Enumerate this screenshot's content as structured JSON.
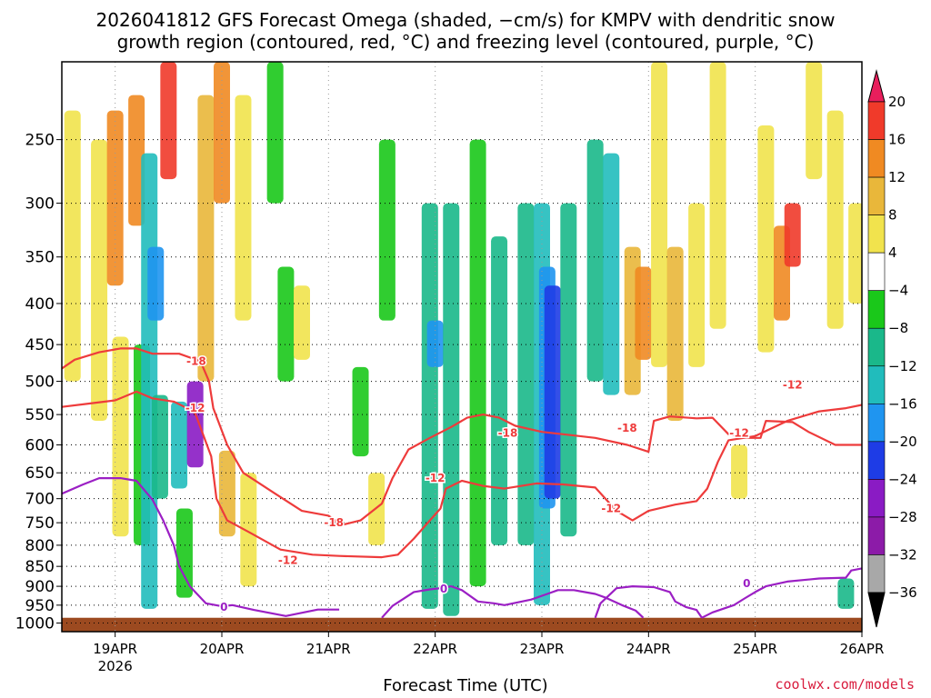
{
  "title_line1": "2026041812 GFS Forecast Omega (shaded, −cm/s) for KMPV with dendritic snow",
  "title_line2": "growth region (contoured, red, °C) and freezing level (contoured, purple, °C)",
  "credit": "coolwx.com/models",
  "chart_data": {
    "type": "heatmap",
    "title": "2026041812 GFS Forecast Omega (shaded, −cm/s) for KMPV with dendritic snow growth region (contoured, red, °C) and freezing level (contoured, purple, °C)",
    "xlabel": "Forecast Time (UTC)",
    "ylabel": "",
    "x_range_days": [
      18.5,
      26.0
    ],
    "x_ticks": [
      {
        "label": "19APR",
        "day": 19,
        "sub": "2026"
      },
      {
        "label": "20APR",
        "day": 20,
        "sub": ""
      },
      {
        "label": "21APR",
        "day": 21,
        "sub": ""
      },
      {
        "label": "22APR",
        "day": 22,
        "sub": ""
      },
      {
        "label": "23APR",
        "day": 23,
        "sub": ""
      },
      {
        "label": "24APR",
        "day": 24,
        "sub": ""
      },
      {
        "label": "25APR",
        "day": 25,
        "sub": ""
      },
      {
        "label": "26APR",
        "day": 26,
        "sub": ""
      }
    ],
    "y_axis": "pressure (hPa), inverted",
    "y_range": [
      1025,
      200
    ],
    "y_ticks": [
      250,
      300,
      350,
      400,
      450,
      500,
      550,
      600,
      650,
      700,
      750,
      800,
      850,
      900,
      950,
      1000
    ],
    "colorbar": {
      "labels": [
        "20",
        "16",
        "12",
        "8",
        "4",
        "−4",
        "−8",
        "−12",
        "−16",
        "−20",
        "−24",
        "−28",
        "−32",
        "−36"
      ],
      "colors": [
        "#e81e5c",
        "#f03a2a",
        "#f08a22",
        "#e9b73a",
        "#f1e34d",
        "#ffffff",
        "#1ac81a",
        "#1ab88a",
        "#21bcbc",
        "#1f95f0",
        "#1e3ce6",
        "#8a1bc4",
        "#8c1ba8",
        "#a8a8a8",
        "#000000"
      ]
    },
    "surface_color": "#9c4a20",
    "contours": [
      {
        "name": "dgz-minus18",
        "color": "#ee3b3b",
        "level": -18,
        "label": "-18",
        "points": [
          [
            18.5,
            482
          ],
          [
            18.62,
            470
          ],
          [
            18.85,
            460
          ],
          [
            19.05,
            455
          ],
          [
            19.2,
            455
          ],
          [
            19.35,
            462
          ],
          [
            19.6,
            462
          ],
          [
            19.8,
            472
          ],
          [
            19.88,
            500
          ],
          [
            19.92,
            540
          ],
          [
            20.05,
            600
          ],
          [
            20.2,
            650
          ],
          [
            20.5,
            690
          ],
          [
            20.75,
            725
          ],
          [
            21.0,
            735
          ],
          [
            21.12,
            755
          ],
          [
            21.3,
            745
          ],
          [
            21.5,
            710
          ],
          [
            21.6,
            660
          ],
          [
            21.75,
            608
          ],
          [
            21.95,
            588
          ],
          [
            22.15,
            570
          ],
          [
            22.3,
            555
          ],
          [
            22.45,
            550
          ],
          [
            22.6,
            555
          ],
          [
            22.75,
            568
          ],
          [
            23.0,
            578
          ],
          [
            23.2,
            582
          ],
          [
            23.5,
            588
          ],
          [
            23.8,
            600
          ],
          [
            24.0,
            612
          ],
          [
            24.05,
            560
          ],
          [
            24.2,
            553
          ],
          [
            24.45,
            556
          ],
          [
            24.6,
            555
          ],
          [
            24.75,
            582
          ],
          [
            24.95,
            588
          ],
          [
            25.05,
            588
          ],
          [
            25.1,
            560
          ],
          [
            25.35,
            562
          ],
          [
            25.5,
            578
          ],
          [
            25.75,
            600
          ],
          [
            26.0,
            600
          ]
        ],
        "labels": [
          {
            "day": 19.76,
            "p": 472
          },
          {
            "day": 21.05,
            "p": 750
          },
          {
            "day": 22.68,
            "p": 580
          },
          {
            "day": 23.8,
            "p": 572
          }
        ]
      },
      {
        "name": "dgz-minus12",
        "color": "#ee3b3b",
        "level": -12,
        "label": "-12",
        "points": [
          [
            18.5,
            538
          ],
          [
            18.75,
            533
          ],
          [
            19.0,
            528
          ],
          [
            19.2,
            515
          ],
          [
            19.35,
            525
          ],
          [
            19.55,
            530
          ],
          [
            19.65,
            538
          ],
          [
            19.75,
            548
          ],
          [
            19.9,
            620
          ],
          [
            19.95,
            700
          ],
          [
            20.05,
            745
          ],
          [
            20.25,
            770
          ],
          [
            20.55,
            810
          ],
          [
            20.85,
            822
          ],
          [
            21.1,
            825
          ],
          [
            21.5,
            828
          ],
          [
            21.65,
            822
          ],
          [
            21.8,
            785
          ],
          [
            21.95,
            745
          ],
          [
            22.05,
            720
          ],
          [
            22.1,
            680
          ],
          [
            22.25,
            665
          ],
          [
            22.45,
            675
          ],
          [
            22.65,
            680
          ],
          [
            22.95,
            670
          ],
          [
            23.2,
            672
          ],
          [
            23.5,
            678
          ],
          [
            23.7,
            725
          ],
          [
            23.85,
            745
          ],
          [
            24.0,
            725
          ],
          [
            24.25,
            712
          ],
          [
            24.45,
            705
          ],
          [
            24.55,
            680
          ],
          [
            24.65,
            630
          ],
          [
            24.75,
            592
          ],
          [
            25.0,
            585
          ],
          [
            25.3,
            560
          ],
          [
            25.6,
            545
          ],
          [
            25.85,
            540
          ],
          [
            26.0,
            535
          ]
        ],
        "labels": [
          {
            "day": 19.75,
            "p": 540
          },
          {
            "day": 20.62,
            "p": 835
          },
          {
            "day": 22.0,
            "p": 660
          },
          {
            "day": 23.65,
            "p": 720
          },
          {
            "day": 24.85,
            "p": 580
          },
          {
            "day": 25.35,
            "p": 505
          }
        ]
      },
      {
        "name": "freezing-0a",
        "color": "#9b1fc4",
        "level": 0,
        "label": "0",
        "points": [
          [
            18.5,
            690
          ],
          [
            18.7,
            672
          ],
          [
            18.85,
            660
          ],
          [
            19.05,
            660
          ],
          [
            19.2,
            665
          ],
          [
            19.35,
            702
          ],
          [
            19.45,
            745
          ],
          [
            19.55,
            800
          ],
          [
            19.6,
            850
          ],
          [
            19.7,
            900
          ],
          [
            19.85,
            945
          ],
          [
            20.0,
            953
          ],
          [
            20.1,
            950
          ],
          [
            20.3,
            963
          ],
          [
            20.6,
            980
          ],
          [
            20.9,
            962
          ],
          [
            21.1,
            962
          ]
        ],
        "labels": [
          {
            "day": 20.02,
            "p": 955
          }
        ]
      },
      {
        "name": "freezing-0b",
        "color": "#9b1fc4",
        "level": 0,
        "label": "0",
        "points": [
          [
            21.5,
            985
          ],
          [
            21.6,
            952
          ],
          [
            21.8,
            915
          ],
          [
            21.95,
            908
          ],
          [
            22.05,
            905
          ],
          [
            22.15,
            900
          ],
          [
            22.25,
            910
          ],
          [
            22.4,
            940
          ],
          [
            22.55,
            945
          ],
          [
            22.65,
            950
          ],
          [
            22.9,
            935
          ],
          [
            23.05,
            920
          ],
          [
            23.15,
            910
          ],
          [
            23.3,
            910
          ],
          [
            23.5,
            920
          ],
          [
            23.6,
            930
          ],
          [
            23.75,
            950
          ],
          [
            23.88,
            965
          ],
          [
            23.95,
            985
          ]
        ],
        "labels": [
          {
            "day": 22.08,
            "p": 907
          }
        ]
      },
      {
        "name": "freezing-0c",
        "color": "#9b1fc4",
        "level": 0,
        "label": "0",
        "points": [
          [
            23.5,
            985
          ],
          [
            23.55,
            945
          ],
          [
            23.7,
            905
          ],
          [
            23.85,
            900
          ],
          [
            24.05,
            902
          ],
          [
            24.2,
            915
          ],
          [
            24.25,
            940
          ],
          [
            24.35,
            955
          ],
          [
            24.45,
            963
          ],
          [
            24.5,
            985
          ]
        ],
        "labels": []
      },
      {
        "name": "freezing-0d",
        "color": "#9b1fc4",
        "level": 0,
        "label": "0",
        "points": [
          [
            24.5,
            985
          ],
          [
            24.6,
            970
          ],
          [
            24.8,
            950
          ],
          [
            24.9,
            932
          ],
          [
            25.0,
            915
          ],
          [
            25.1,
            900
          ],
          [
            25.3,
            888
          ],
          [
            25.6,
            880
          ],
          [
            25.85,
            878
          ],
          [
            25.9,
            860
          ],
          [
            26.0,
            855
          ]
        ],
        "labels": [
          {
            "day": 24.92,
            "p": 893
          }
        ]
      }
    ],
    "field_cells": [
      {
        "day": 18.6,
        "p0": 230,
        "p1": 500,
        "v": 6
      },
      {
        "day": 18.85,
        "p0": 250,
        "p1": 560,
        "v": 6
      },
      {
        "day": 19.0,
        "p0": 230,
        "p1": 380,
        "v": 12
      },
      {
        "day": 19.05,
        "p0": 440,
        "p1": 780,
        "v": 7
      },
      {
        "day": 19.2,
        "p0": 220,
        "p1": 320,
        "v": 14
      },
      {
        "day": 19.25,
        "p0": 450,
        "p1": 800,
        "v": -7
      },
      {
        "day": 19.32,
        "p0": 260,
        "p1": 960,
        "v": -15
      },
      {
        "day": 19.38,
        "p0": 340,
        "p1": 420,
        "v": -18
      },
      {
        "day": 19.42,
        "p0": 520,
        "p1": 700,
        "v": -9
      },
      {
        "day": 19.5,
        "p0": 200,
        "p1": 280,
        "v": 18
      },
      {
        "day": 19.6,
        "p0": 530,
        "p1": 680,
        "v": -15
      },
      {
        "day": 19.65,
        "p0": 720,
        "p1": 930,
        "v": -7
      },
      {
        "day": 19.75,
        "p0": 500,
        "p1": 640,
        "v": -24
      },
      {
        "day": 19.85,
        "p0": 220,
        "p1": 500,
        "v": 8
      },
      {
        "day": 20.0,
        "p0": 200,
        "p1": 300,
        "v": 14
      },
      {
        "day": 20.05,
        "p0": 610,
        "p1": 780,
        "v": 8
      },
      {
        "day": 20.2,
        "p0": 220,
        "p1": 420,
        "v": 6
      },
      {
        "day": 20.25,
        "p0": 650,
        "p1": 900,
        "v": 5
      },
      {
        "day": 20.5,
        "p0": 200,
        "p1": 300,
        "v": -7
      },
      {
        "day": 20.6,
        "p0": 360,
        "p1": 500,
        "v": -7
      },
      {
        "day": 20.75,
        "p0": 380,
        "p1": 470,
        "v": 5
      },
      {
        "day": 21.3,
        "p0": 480,
        "p1": 620,
        "v": -7
      },
      {
        "day": 21.45,
        "p0": 650,
        "p1": 800,
        "v": 5
      },
      {
        "day": 21.55,
        "p0": 250,
        "p1": 420,
        "v": -7
      },
      {
        "day": 21.95,
        "p0": 300,
        "p1": 960,
        "v": -10
      },
      {
        "day": 22.0,
        "p0": 420,
        "p1": 480,
        "v": -17
      },
      {
        "day": 22.15,
        "p0": 300,
        "p1": 980,
        "v": -8
      },
      {
        "day": 22.4,
        "p0": 250,
        "p1": 900,
        "v": -7
      },
      {
        "day": 22.6,
        "p0": 330,
        "p1": 800,
        "v": -8
      },
      {
        "day": 22.85,
        "p0": 300,
        "p1": 800,
        "v": -10
      },
      {
        "day": 23.0,
        "p0": 300,
        "p1": 950,
        "v": -13
      },
      {
        "day": 23.05,
        "p0": 360,
        "p1": 720,
        "v": -18
      },
      {
        "day": 23.1,
        "p0": 380,
        "p1": 700,
        "v": -20
      },
      {
        "day": 23.25,
        "p0": 300,
        "p1": 780,
        "v": -8
      },
      {
        "day": 23.5,
        "p0": 250,
        "p1": 500,
        "v": -9
      },
      {
        "day": 23.65,
        "p0": 260,
        "p1": 520,
        "v": -12
      },
      {
        "day": 23.85,
        "p0": 340,
        "p1": 520,
        "v": 8
      },
      {
        "day": 23.95,
        "p0": 360,
        "p1": 470,
        "v": 12
      },
      {
        "day": 24.1,
        "p0": 200,
        "p1": 480,
        "v": 6
      },
      {
        "day": 24.25,
        "p0": 340,
        "p1": 560,
        "v": 8
      },
      {
        "day": 24.45,
        "p0": 300,
        "p1": 480,
        "v": 5
      },
      {
        "day": 24.65,
        "p0": 200,
        "p1": 430,
        "v": 6
      },
      {
        "day": 24.85,
        "p0": 600,
        "p1": 700,
        "v": 5
      },
      {
        "day": 25.1,
        "p0": 240,
        "p1": 460,
        "v": 6
      },
      {
        "day": 25.25,
        "p0": 320,
        "p1": 420,
        "v": 14
      },
      {
        "day": 25.35,
        "p0": 300,
        "p1": 360,
        "v": 16
      },
      {
        "day": 25.55,
        "p0": 200,
        "p1": 280,
        "v": 5
      },
      {
        "day": 25.75,
        "p0": 230,
        "p1": 430,
        "v": 5
      },
      {
        "day": 25.95,
        "p0": 300,
        "p1": 400,
        "v": 6
      },
      {
        "day": 25.85,
        "p0": 880,
        "p1": 960,
        "v": -8
      }
    ]
  }
}
